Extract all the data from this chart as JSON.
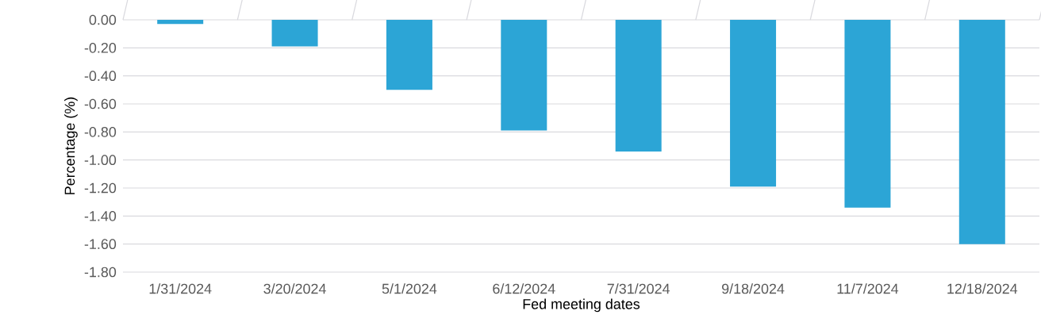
{
  "chart_data": {
    "type": "bar",
    "xlabel": "Fed meeting dates",
    "ylabel": "Percentage (%)",
    "categories": [
      "1/31/2024",
      "3/20/2024",
      "5/1/2024",
      "6/12/2024",
      "7/31/2024",
      "9/18/2024",
      "11/7/2024",
      "12/18/2024"
    ],
    "values": [
      -0.03,
      -0.19,
      -0.5,
      -0.79,
      -0.94,
      -1.19,
      -1.34,
      -1.6
    ],
    "color": "#2ca5d6",
    "ylim": [
      -1.8,
      0
    ],
    "yticks": [
      {
        "value": 0,
        "label": "0.00"
      },
      {
        "value": -0.2,
        "label": "-0.20"
      },
      {
        "value": -0.4,
        "label": "-0.40"
      },
      {
        "value": -0.6,
        "label": "-0.60"
      },
      {
        "value": -0.8,
        "label": "-0.80"
      },
      {
        "value": -1.0,
        "label": "-1.00"
      },
      {
        "value": -1.2,
        "label": "-1.20"
      },
      {
        "value": -1.4,
        "label": "-1.40"
      },
      {
        "value": -1.6,
        "label": "-1.60"
      },
      {
        "value": -1.8,
        "label": "-1.80"
      }
    ],
    "grid": "y"
  }
}
